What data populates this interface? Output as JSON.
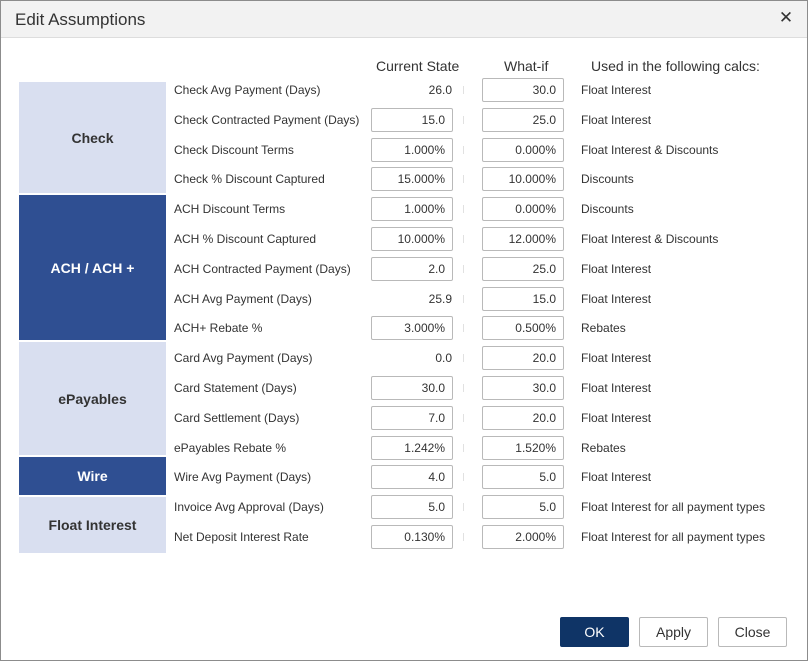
{
  "dialog": {
    "title": "Edit Assumptions",
    "close_icon": "close-icon"
  },
  "columns": {
    "current": "Current State",
    "whatif": "What-if",
    "used": "Used in the following calcs:"
  },
  "groups": [
    {
      "label": "Check",
      "style": "light"
    },
    {
      "label": "ACH / ACH +",
      "style": "dark"
    },
    {
      "label": "ePayables",
      "style": "light"
    },
    {
      "label": "Wire",
      "style": "dark"
    },
    {
      "label": "Float Interest",
      "style": "light"
    }
  ],
  "rows": [
    {
      "label": "Check Avg Payment (Days)",
      "current": "26.0",
      "current_editable": false,
      "whatif": "30.0",
      "used": "Float Interest"
    },
    {
      "label": "Check Contracted Payment (Days)",
      "current": "15.0",
      "current_editable": true,
      "whatif": "25.0",
      "used": "Float Interest"
    },
    {
      "label": "Check Discount Terms",
      "current": "1.000%",
      "current_editable": true,
      "whatif": "0.000%",
      "used": "Float Interest & Discounts"
    },
    {
      "label": "Check % Discount Captured",
      "current": "15.000%",
      "current_editable": true,
      "whatif": "10.000%",
      "used": "Discounts"
    },
    {
      "label": "ACH Discount Terms",
      "current": "1.000%",
      "current_editable": true,
      "whatif": "0.000%",
      "used": "Discounts"
    },
    {
      "label": "ACH % Discount Captured",
      "current": "10.000%",
      "current_editable": true,
      "whatif": "12.000%",
      "used": "Float Interest & Discounts"
    },
    {
      "label": "ACH Contracted Payment (Days)",
      "current": "2.0",
      "current_editable": true,
      "whatif": "25.0",
      "used": "Float Interest"
    },
    {
      "label": "ACH Avg Payment (Days)",
      "current": "25.9",
      "current_editable": false,
      "whatif": "15.0",
      "used": "Float Interest"
    },
    {
      "label": "ACH+ Rebate %",
      "current": "3.000%",
      "current_editable": true,
      "whatif": "0.500%",
      "used": "Rebates"
    },
    {
      "label": "Card Avg Payment (Days)",
      "current": "0.0",
      "current_editable": false,
      "whatif": "20.0",
      "used": "Float Interest"
    },
    {
      "label": "Card Statement (Days)",
      "current": "30.0",
      "current_editable": true,
      "whatif": "30.0",
      "used": "Float Interest"
    },
    {
      "label": "Card Settlement (Days)",
      "current": "7.0",
      "current_editable": true,
      "whatif": "20.0",
      "used": "Float Interest"
    },
    {
      "label": "ePayables Rebate %",
      "current": "1.242%",
      "current_editable": true,
      "whatif": "1.520%",
      "used": "Rebates"
    },
    {
      "label": "Wire Avg Payment (Days)",
      "current": "4.0",
      "current_editable": true,
      "whatif": "5.0",
      "used": "Float Interest"
    },
    {
      "label": "Invoice Avg Approval (Days)",
      "current": "5.0",
      "current_editable": true,
      "whatif": "5.0",
      "used": "Float Interest for all payment types"
    },
    {
      "label": "Net Deposit Interest Rate",
      "current": "0.130%",
      "current_editable": true,
      "whatif": "2.000%",
      "used": "Float Interest for all payment types"
    }
  ],
  "buttons": {
    "ok": "OK",
    "apply": "Apply",
    "close": "Close"
  },
  "colors": {
    "accent_dark": "#2f4f92",
    "accent_light": "#d9dff0",
    "primary_button": "#0f3466"
  }
}
